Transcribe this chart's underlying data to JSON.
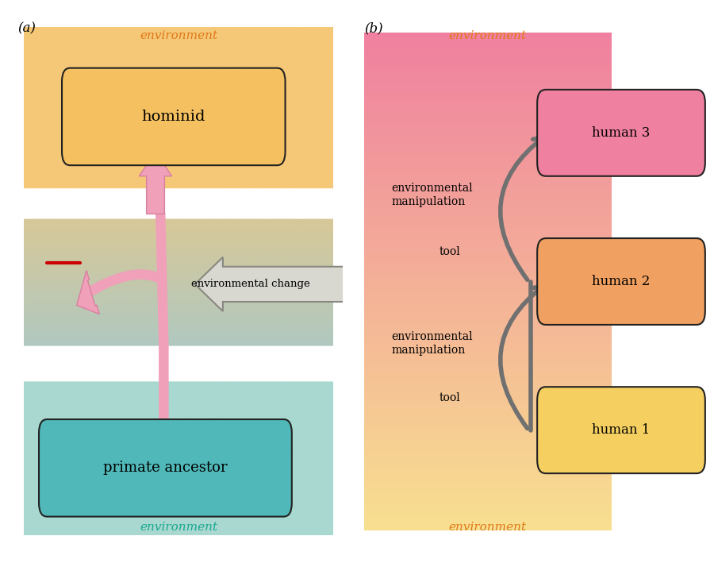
{
  "fig_width": 9.0,
  "fig_height": 7.09,
  "panel_a": {
    "label": "(a)",
    "env_label_color_top": "#e07818",
    "env_label_color_bottom": "#18a890",
    "hominid_text": "hominid",
    "primate_text": "primate ancestor",
    "env_text_top": "environment",
    "env_text_bottom": "environment",
    "env_change_text": "environmental change",
    "top_bg_color": "#f5c878",
    "mid_top_color": "#dfc888",
    "mid_bot_color": "#b8c8b0",
    "bot_bg_color": "#a8d8d0",
    "hominid_box_color": "#f5c060",
    "primate_box_color": "#50b8b8",
    "arrow_pink_color": "#f0a0b8",
    "arrow_pink_edge": "#d880a0",
    "arrow_env_face": "#d8d8d0",
    "arrow_env_edge": "#888880",
    "red_line_color": "#cc0000"
  },
  "panel_b": {
    "label": "(b)",
    "env_label_color": "#e07818",
    "human3_box_color": "#f080a0",
    "human2_box_color": "#f0a060",
    "human1_box_color": "#f5d060",
    "human3_text": "human 3",
    "human2_text": "human 2",
    "human1_text": "human 1",
    "env_text_top": "environment",
    "env_text_bottom": "environment",
    "env_manip_text": "environmental\nmanipulation",
    "tool_text": "tool",
    "arrow_color": "#707070",
    "bg_top_color": "#f080a0",
    "bg_bot_color": "#f8e090"
  }
}
